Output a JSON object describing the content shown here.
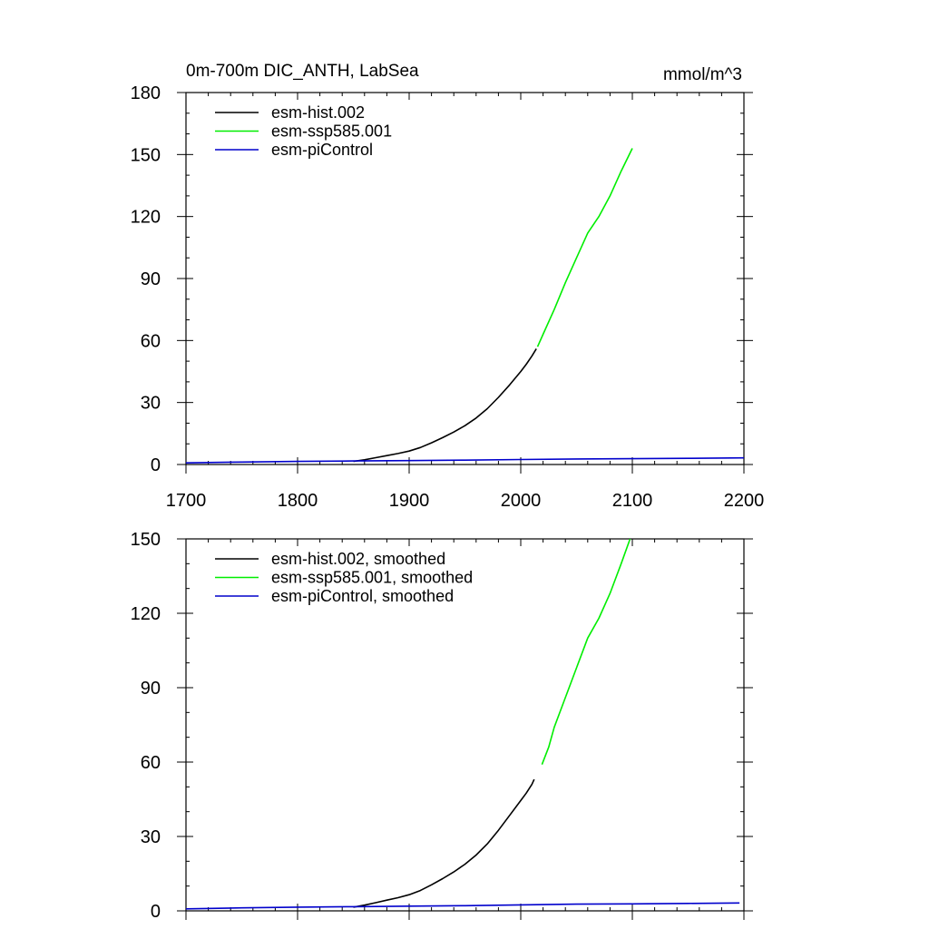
{
  "chart_data": [
    {
      "type": "line",
      "title": "0m-700m DIC_ANTH, LabSea",
      "units": "mmol/m^3",
      "xlim": [
        1700,
        2200
      ],
      "ylim": [
        0,
        180
      ],
      "xticks": [
        1700,
        1800,
        1900,
        2000,
        2100,
        2200
      ],
      "yticks": [
        0,
        30,
        60,
        90,
        120,
        150,
        180
      ],
      "show_x_tick_labels": true,
      "legend": "top-left",
      "series": [
        {
          "name": "esm-hist.002",
          "color": "#000000",
          "x": [
            1850,
            1860,
            1870,
            1880,
            1890,
            1900,
            1910,
            1920,
            1930,
            1940,
            1950,
            1960,
            1970,
            1980,
            1990,
            2000,
            2005,
            2010,
            2014
          ],
          "y": [
            1.5,
            2.3,
            3.3,
            4.3,
            5.3,
            6.5,
            8.2,
            10.5,
            13.0,
            15.7,
            18.8,
            22.5,
            27.0,
            32.5,
            38.5,
            45.0,
            48.5,
            52.5,
            56.0
          ]
        },
        {
          "name": "esm-ssp585.001",
          "color": "#00ee00",
          "x": [
            2015,
            2020,
            2030,
            2040,
            2050,
            2060,
            2070,
            2080,
            2090,
            2100
          ],
          "y": [
            57.0,
            63.0,
            75.0,
            88.0,
            100.0,
            112.0,
            120.0,
            130.0,
            142.0,
            153.0
          ]
        },
        {
          "name": "esm-piControl",
          "color": "#0000cc",
          "x": [
            1700,
            1750,
            1800,
            1850,
            1900,
            1950,
            2000,
            2050,
            2100,
            2150,
            2200
          ],
          "y": [
            0.8,
            1.2,
            1.5,
            1.7,
            1.9,
            2.1,
            2.4,
            2.7,
            2.8,
            3.0,
            3.2
          ]
        }
      ]
    },
    {
      "type": "line",
      "title": "",
      "units": "",
      "xlim": [
        1700,
        2200
      ],
      "ylim": [
        0,
        150
      ],
      "xticks": [
        1700,
        1800,
        1900,
        2000,
        2100,
        2200
      ],
      "yticks": [
        0,
        30,
        60,
        90,
        120,
        150
      ],
      "show_x_tick_labels": false,
      "legend": "top-left",
      "series": [
        {
          "name": "esm-hist.002, smoothed",
          "color": "#000000",
          "x": [
            1850,
            1860,
            1870,
            1880,
            1890,
            1900,
            1910,
            1920,
            1930,
            1940,
            1950,
            1960,
            1970,
            1980,
            1990,
            2000,
            2005,
            2010,
            2012
          ],
          "y": [
            1.5,
            2.3,
            3.3,
            4.3,
            5.3,
            6.5,
            8.2,
            10.5,
            13.0,
            15.7,
            18.8,
            22.5,
            27.0,
            32.5,
            38.5,
            44.5,
            47.5,
            51.0,
            53.0
          ]
        },
        {
          "name": "esm-ssp585.001, smoothed",
          "color": "#00ee00",
          "x": [
            2019,
            2025,
            2030,
            2040,
            2050,
            2060,
            2070,
            2080,
            2090,
            2098
          ],
          "y": [
            59.0,
            66.0,
            74.0,
            86.0,
            98.0,
            110.0,
            118.0,
            128.0,
            140.0,
            150.0
          ]
        },
        {
          "name": "esm-piControl, smoothed",
          "color": "#0000cc",
          "x": [
            1700,
            1750,
            1800,
            1850,
            1900,
            1950,
            2000,
            2050,
            2100,
            2150,
            2196
          ],
          "y": [
            0.8,
            1.2,
            1.5,
            1.7,
            1.9,
            2.1,
            2.4,
            2.7,
            2.8,
            3.0,
            3.2
          ]
        }
      ]
    }
  ]
}
